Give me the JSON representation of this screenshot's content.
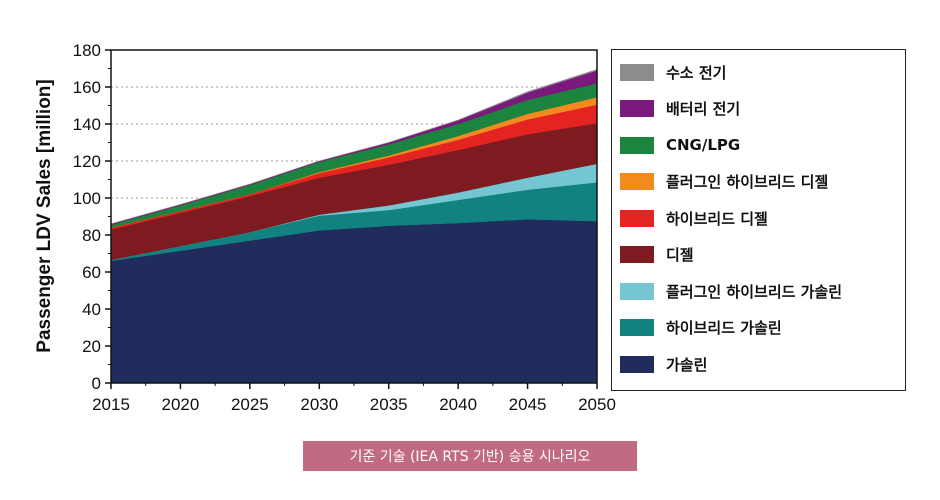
{
  "chart_data": {
    "type": "area",
    "stacked": true,
    "xlabel": "",
    "ylabel": "Passenger LDV Sales [million]",
    "x": [
      2015,
      2020,
      2025,
      2030,
      2035,
      2040,
      2045,
      2050
    ],
    "xticks": [
      2015,
      2020,
      2025,
      2030,
      2035,
      2040,
      2045,
      2050
    ],
    "ylim": [
      0,
      180
    ],
    "yticks": [
      0,
      20,
      40,
      60,
      80,
      100,
      120,
      140,
      160,
      180
    ],
    "grid": "horizontal dotted",
    "legend_position": "right",
    "series": [
      {
        "name": "가솔린",
        "color": "#1f2c5c",
        "values": [
          66,
          71.5,
          77,
          82.5,
          85,
          86.5,
          88.5,
          87.5
        ]
      },
      {
        "name": "하이브리드 가솔린",
        "color": "#128281",
        "values": [
          0.5,
          2.5,
          4.5,
          8,
          8.5,
          12.5,
          16,
          21
        ]
      },
      {
        "name": "플러그인 하이브리드 가솔린",
        "color": "#74c7d2",
        "values": [
          0,
          0,
          0,
          0.5,
          2.5,
          4,
          6.5,
          10
        ]
      },
      {
        "name": "디젤",
        "color": "#7e1b20",
        "values": [
          16.5,
          18,
          19.5,
          20,
          22,
          23,
          23.5,
          22
        ]
      },
      {
        "name": "하이브리드 디젤",
        "color": "#e42421",
        "values": [
          1,
          1,
          1,
          2.5,
          4,
          5.5,
          8,
          10
        ]
      },
      {
        "name": "플러그인 하이브리드 디젤",
        "color": "#f28b1f",
        "values": [
          0,
          0,
          0,
          0.5,
          1,
          2,
          3,
          4
        ]
      },
      {
        "name": "CNG/LPG",
        "color": "#1b843e",
        "values": [
          1.5,
          3,
          5,
          5.5,
          6,
          6.5,
          7.5,
          7.5
        ]
      },
      {
        "name": "배터리 전기",
        "color": "#7a1a7d",
        "values": [
          0.5,
          0.5,
          0.5,
          0.5,
          1,
          2,
          4,
          7
        ]
      },
      {
        "name": "수소 전기",
        "color": "#8c8c8c",
        "values": [
          0,
          0,
          0,
          0,
          0,
          0.2,
          0.5,
          0.5
        ]
      }
    ]
  },
  "caption": "기준 기술 (IEA RTS 기반) 승용 시나리오"
}
